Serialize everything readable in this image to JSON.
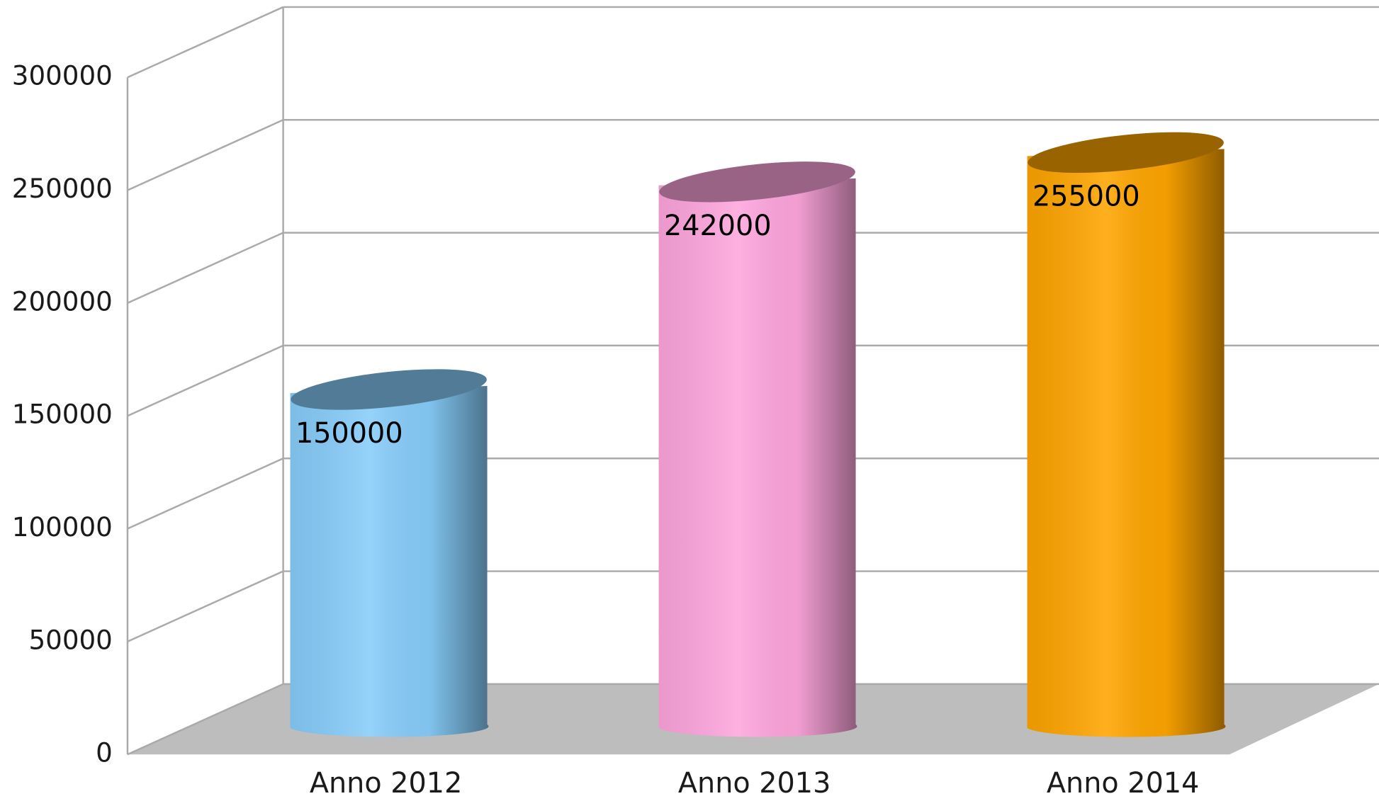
{
  "chart_data": {
    "type": "bar3d",
    "categories": [
      "Anno 2012",
      "Anno 2013",
      "Anno 2014"
    ],
    "values": [
      150000,
      242000,
      255000
    ],
    "colors": [
      "#87cdfa",
      "#ffa6de",
      "#ffa500"
    ],
    "ylim": [
      0,
      300000
    ],
    "yticks": [
      0,
      50000,
      100000,
      150000,
      200000,
      250000,
      300000
    ],
    "grid": true
  }
}
